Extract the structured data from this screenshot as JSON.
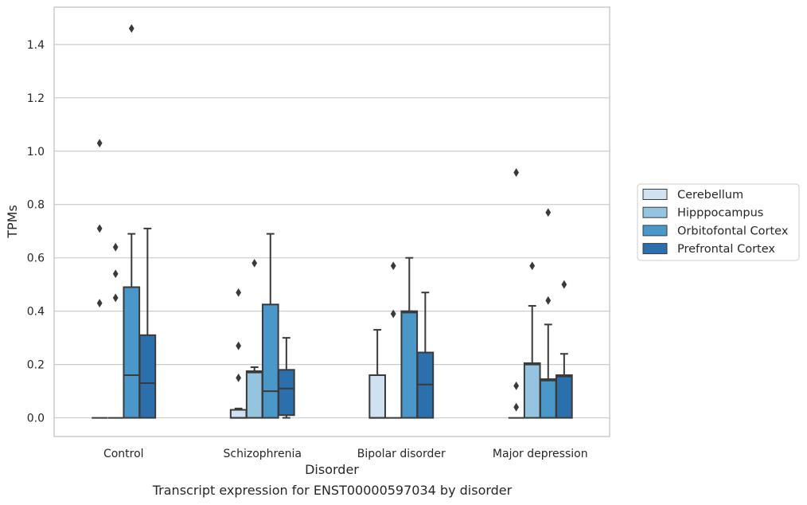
{
  "caption": "Transcript expression for ENST00000597034 by disorder",
  "chart_data": {
    "type": "boxplot",
    "title": "",
    "xlabel": "Disorder",
    "ylabel": "TPMs",
    "ylim": [
      -0.07,
      1.54
    ],
    "yticks": [
      0.0,
      0.2,
      0.4,
      0.6,
      0.8,
      1.0,
      1.2,
      1.4
    ],
    "ytick_labels": [
      "0.0",
      "0.2",
      "0.4",
      "0.6",
      "0.8",
      "1.0",
      "1.2",
      "1.4"
    ],
    "grid": "horizontal",
    "legend_position": "right",
    "categories": [
      "Control",
      "Schizophrenia",
      "Bipolar disorder",
      "Major depression"
    ],
    "series": [
      {
        "name": "Cerebellum",
        "color": "#d0e1f2",
        "boxes": [
          {
            "q1": 0,
            "median": 0,
            "q3": 0,
            "whislo": 0,
            "whishi": 0,
            "fliers": [
              0.43,
              0.71,
              1.03
            ]
          },
          {
            "q1": 0,
            "median": 0,
            "q3": 0.03,
            "whislo": 0,
            "whishi": 0.035,
            "fliers": [
              0.15,
              0.27,
              0.47
            ]
          },
          {
            "q1": 0,
            "median": 0,
            "q3": 0.16,
            "whislo": 0,
            "whishi": 0.33,
            "fliers": []
          },
          {
            "q1": 0,
            "median": 0,
            "q3": 0,
            "whislo": 0,
            "whishi": 0,
            "fliers": [
              0.04,
              0.12,
              0.92
            ]
          }
        ]
      },
      {
        "name": "Hipppocampus",
        "color": "#94c4df",
        "boxes": [
          {
            "q1": 0,
            "median": 0,
            "q3": 0,
            "whislo": 0,
            "whishi": 0,
            "fliers": [
              0.45,
              0.54,
              0.64
            ]
          },
          {
            "q1": 0,
            "median": 0.17,
            "q3": 0.175,
            "whislo": 0,
            "whishi": 0.19,
            "fliers": [
              0.58
            ]
          },
          {
            "q1": 0,
            "median": 0,
            "q3": 0,
            "whislo": 0,
            "whishi": 0,
            "fliers": [
              0.39,
              0.57
            ]
          },
          {
            "q1": 0,
            "median": 0.2,
            "q3": 0.205,
            "whislo": 0,
            "whishi": 0.42,
            "fliers": [
              0.57
            ]
          }
        ]
      },
      {
        "name": "Orbitofontal Cortex",
        "color": "#4a98c9",
        "boxes": [
          {
            "q1": 0,
            "median": 0.16,
            "q3": 0.49,
            "whislo": 0,
            "whishi": 0.69,
            "fliers": [
              1.46
            ]
          },
          {
            "q1": 0,
            "median": 0.1,
            "q3": 0.425,
            "whislo": 0,
            "whishi": 0.69,
            "fliers": []
          },
          {
            "q1": 0,
            "median": 0.395,
            "q3": 0.4,
            "whislo": 0,
            "whishi": 0.6,
            "fliers": []
          },
          {
            "q1": 0,
            "median": 0.14,
            "q3": 0.145,
            "whislo": 0,
            "whishi": 0.35,
            "fliers": [
              0.44,
              0.77
            ]
          }
        ]
      },
      {
        "name": "Prefrontal Cortex",
        "color": "#2b6fad",
        "boxes": [
          {
            "q1": 0,
            "median": 0.13,
            "q3": 0.31,
            "whislo": 0,
            "whishi": 0.71,
            "fliers": []
          },
          {
            "q1": 0.01,
            "median": 0.11,
            "q3": 0.18,
            "whislo": 0,
            "whishi": 0.3,
            "fliers": []
          },
          {
            "q1": 0,
            "median": 0.125,
            "q3": 0.245,
            "whislo": 0,
            "whishi": 0.47,
            "fliers": []
          },
          {
            "q1": 0,
            "median": 0.155,
            "q3": 0.16,
            "whislo": 0,
            "whishi": 0.24,
            "fliers": [
              0.5
            ]
          }
        ]
      }
    ]
  }
}
